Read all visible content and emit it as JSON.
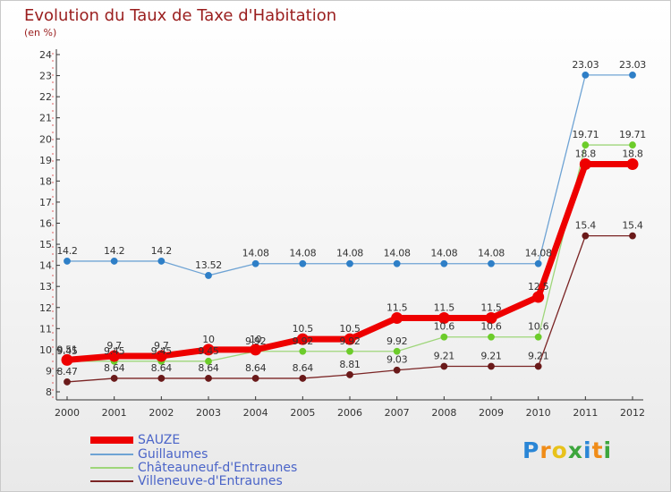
{
  "title": "Evolution du Taux de Taxe d'Habitation",
  "subtitle": "(en %)",
  "logo": {
    "letters": [
      "P",
      "r",
      "o",
      "x",
      "i",
      "t",
      "i"
    ],
    "colors": [
      "#2a86d6",
      "#f08c18",
      "#e8c21a",
      "#3da63d",
      "#2a86d6",
      "#f08c18",
      "#3da63d"
    ]
  },
  "chart_data": {
    "type": "line",
    "x": [
      "2000",
      "2001",
      "2002",
      "2003",
      "2004",
      "2005",
      "2006",
      "2007",
      "2008",
      "2009",
      "2010",
      "2011",
      "2012"
    ],
    "ylim": [
      8,
      24
    ],
    "yticks": [
      "8",
      "9",
      "10",
      "11",
      "12",
      "13",
      "14",
      "15",
      "16",
      "17",
      "18",
      "19",
      "20",
      "21",
      "22",
      "23",
      "24"
    ],
    "grid": false,
    "legend_position": "bottom-left",
    "series": [
      {
        "name": "Guillaumes",
        "color": "#6ea3d4",
        "values": [
          14.2,
          14.2,
          14.2,
          13.52,
          14.08,
          14.08,
          14.08,
          14.08,
          14.08,
          14.08,
          14.08,
          23.03,
          23.03
        ],
        "labels": [
          "14.2",
          "14.2",
          "14.2",
          "13.52",
          "14.08",
          "14.08",
          "14.08",
          "14.08",
          "14.08",
          "14.08",
          "14.08",
          "23.03",
          "23.03"
        ]
      },
      {
        "name": "Châteauneuf-d'Entraunes",
        "color": "#9ed67a",
        "values": [
          9.45,
          9.45,
          9.45,
          9.45,
          9.92,
          9.92,
          9.92,
          9.92,
          10.6,
          10.6,
          10.6,
          19.71,
          19.71
        ],
        "labels": [
          "9.45",
          "9.45",
          "9.45",
          "9.45",
          "9.92",
          "9.92",
          "9.92",
          "9.92",
          "10.6",
          "10.6",
          "10.6",
          "19.71",
          "19.71"
        ]
      },
      {
        "name": "Villeneuve-d'Entraunes",
        "color": "#7a2424",
        "values": [
          8.47,
          8.64,
          8.64,
          8.64,
          8.64,
          8.64,
          8.81,
          9.03,
          9.21,
          9.21,
          9.21,
          15.4,
          15.4
        ],
        "labels": [
          "8.47",
          "8.64",
          "8.64",
          "8.64",
          "8.64",
          "8.64",
          "8.81",
          "9.03",
          "9.21",
          "9.21",
          "9.21",
          "15.4",
          "15.4"
        ]
      },
      {
        "name": "SAUZE",
        "color": "#ee0000",
        "values": [
          9.51,
          9.7,
          9.7,
          10,
          10,
          10.5,
          10.5,
          11.5,
          11.5,
          11.5,
          12.5,
          18.8,
          18.8
        ],
        "labels": [
          "9.51",
          "9.7",
          "9.7",
          "10",
          "10",
          "10.5",
          "10.5",
          "11.5",
          "11.5",
          "11.5",
          "12.5",
          "18.8",
          "18.8"
        ]
      }
    ],
    "legend_order": [
      "SAUZE",
      "Guillaumes",
      "Châteauneuf-d'Entraunes",
      "Villeneuve-d'Entraunes"
    ]
  }
}
